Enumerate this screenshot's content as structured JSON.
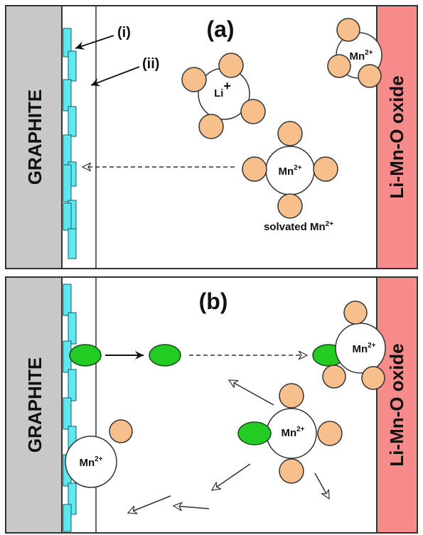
{
  "panels": [
    {
      "label": "(a)",
      "anode": "GRAPHITE",
      "cathode": "Li-Mn-O oxide",
      "callouts": [
        "(i)",
        "(ii)"
      ],
      "ions": [
        {
          "base": "Li",
          "sup": "+"
        },
        {
          "base": "Mn",
          "sup": "2+"
        },
        {
          "base": "Mn",
          "sup": "2+"
        }
      ],
      "caption": {
        "base": "solvated Mn",
        "sup": "2+"
      }
    },
    {
      "label": "(b)",
      "anode": "GRAPHITE",
      "cathode": "Li-Mn-O oxide",
      "ions": [
        {
          "base": "Mn",
          "sup": "2+"
        },
        {
          "base": "Mn",
          "sup": "2+"
        },
        {
          "base": "Mn",
          "sup": "2+"
        }
      ]
    }
  ]
}
